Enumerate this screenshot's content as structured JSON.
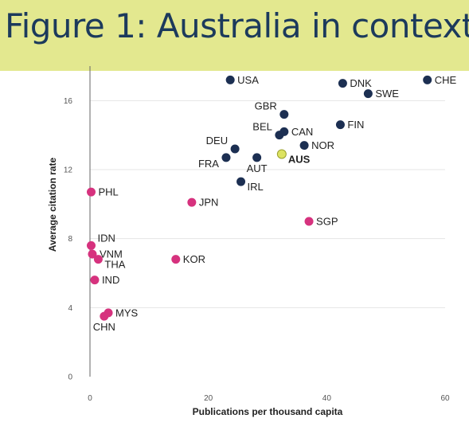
{
  "banner": {
    "title": "Figure 1: Australia in context",
    "background": "#e3e88f",
    "text_color": "#1c3a5c"
  },
  "colors": {
    "developed": "#1c2f52",
    "developing": "#d6327e",
    "highlight": "#dde361",
    "highlight_stroke": "#9aa02e"
  },
  "chart_data": {
    "type": "scatter",
    "xlabel": "Publications per thousand capita",
    "ylabel": "Average citation rate",
    "xlim": [
      0,
      60
    ],
    "ylim": [
      0,
      18
    ],
    "xticks": [
      0,
      20,
      40,
      60
    ],
    "yticks": [
      0,
      4,
      8,
      12,
      16
    ],
    "grid": "horizontal",
    "legend": "none",
    "points": [
      {
        "label": "USA",
        "x": 23.7,
        "y": 17.2,
        "group": "developed",
        "anchor": "right"
      },
      {
        "label": "CHE",
        "x": 57.0,
        "y": 17.2,
        "group": "developed",
        "anchor": "right"
      },
      {
        "label": "DNK",
        "x": 42.7,
        "y": 17.0,
        "group": "developed",
        "anchor": "right"
      },
      {
        "label": "SWE",
        "x": 47.0,
        "y": 16.4,
        "group": "developed",
        "anchor": "right"
      },
      {
        "label": "GBR",
        "x": 32.8,
        "y": 15.2,
        "group": "developed",
        "anchor": "left-above"
      },
      {
        "label": "FIN",
        "x": 42.3,
        "y": 14.6,
        "group": "developed",
        "anchor": "right"
      },
      {
        "label": "CAN",
        "x": 32.8,
        "y": 14.2,
        "group": "developed",
        "anchor": "right"
      },
      {
        "label": "BEL",
        "x": 32.0,
        "y": 14.0,
        "group": "developed",
        "anchor": "left-above"
      },
      {
        "label": "NOR",
        "x": 36.2,
        "y": 13.4,
        "group": "developed",
        "anchor": "right"
      },
      {
        "label": "DEU",
        "x": 24.5,
        "y": 13.2,
        "group": "developed",
        "anchor": "left-above"
      },
      {
        "label": "FRA",
        "x": 23.0,
        "y": 12.7,
        "group": "developed",
        "anchor": "left-below"
      },
      {
        "label": "AUT",
        "x": 28.2,
        "y": 12.7,
        "group": "developed",
        "anchor": "below"
      },
      {
        "label": "AUS",
        "x": 32.4,
        "y": 12.9,
        "group": "highlight",
        "anchor": "right-below"
      },
      {
        "label": "IRL",
        "x": 25.5,
        "y": 11.3,
        "group": "developed",
        "anchor": "right-below"
      },
      {
        "label": "PHL",
        "x": 0.2,
        "y": 10.7,
        "group": "developing",
        "anchor": "right"
      },
      {
        "label": "JPN",
        "x": 17.2,
        "y": 10.1,
        "group": "developing",
        "anchor": "right"
      },
      {
        "label": "SGP",
        "x": 37.0,
        "y": 9.0,
        "group": "developing",
        "anchor": "right"
      },
      {
        "label": "IDN",
        "x": 0.2,
        "y": 7.6,
        "group": "developing",
        "anchor": "right-above"
      },
      {
        "label": "VNM",
        "x": 0.4,
        "y": 7.1,
        "group": "developing",
        "anchor": "right"
      },
      {
        "label": "THA",
        "x": 1.4,
        "y": 6.8,
        "group": "developing",
        "anchor": "right-below"
      },
      {
        "label": "KOR",
        "x": 14.5,
        "y": 6.8,
        "group": "developing",
        "anchor": "right"
      },
      {
        "label": "IND",
        "x": 0.8,
        "y": 5.6,
        "group": "developing",
        "anchor": "right"
      },
      {
        "label": "MYS",
        "x": 3.1,
        "y": 3.7,
        "group": "developing",
        "anchor": "right"
      },
      {
        "label": "CHN",
        "x": 2.4,
        "y": 3.5,
        "group": "developing",
        "anchor": "below"
      }
    ]
  }
}
